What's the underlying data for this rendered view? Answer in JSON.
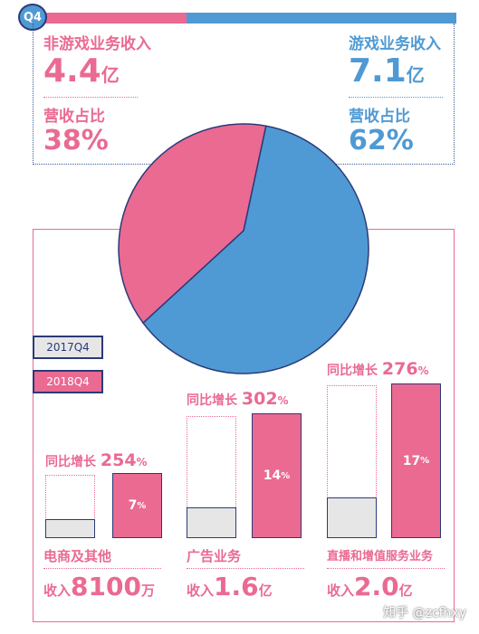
{
  "badge": "Q4",
  "top": {
    "non_game_label": "非游戏业务收入",
    "non_game_value": "4.4",
    "non_game_unit": "亿",
    "non_game_share_label": "营收占比",
    "non_game_share": "38%",
    "game_label": "游戏业务收入",
    "game_value": "7.1",
    "game_unit": "亿",
    "game_share_label": "营收占比",
    "game_share": "62%"
  },
  "legend": {
    "a": "2017Q4",
    "b": "2018Q4"
  },
  "colors": {
    "pink": "#ea6a92",
    "blue": "#4f9ad4",
    "navy": "#2b3a78",
    "gray": "#e6e6e6"
  },
  "growth_prefix": "同比增长",
  "segments": [
    {
      "name": "电商及其他",
      "revenue_prefix": "收入",
      "revenue_value": "8100",
      "revenue_unit": "万",
      "growth": "254",
      "growth_unit": "%",
      "share_label": "7",
      "share_unit": "%"
    },
    {
      "name": "广告业务",
      "revenue_prefix": "收入",
      "revenue_value": "1.6",
      "revenue_unit": "亿",
      "growth": "302",
      "growth_unit": "%",
      "share_label": "14",
      "share_unit": "%"
    },
    {
      "name": "直播和增值服务业务",
      "revenue_prefix": "收入",
      "revenue_value": "2.0",
      "revenue_unit": "亿",
      "growth": "276",
      "growth_unit": "%",
      "share_label": "17",
      "share_unit": "%"
    }
  ],
  "chart_data": [
    {
      "type": "pie",
      "title": "",
      "categories": [
        "非游戏业务收入",
        "游戏业务收入"
      ],
      "values": [
        38,
        62
      ],
      "colors": [
        "#ea6a92",
        "#4f9ad4"
      ]
    },
    {
      "type": "bar",
      "title": "",
      "categories": [
        "电商及其他",
        "广告业务",
        "直播和增值服务业务"
      ],
      "series": [
        {
          "name": "2017Q4",
          "values": [
            0.23,
            0.4,
            0.53
          ]
        },
        {
          "name": "2018Q4",
          "values": [
            0.81,
            1.6,
            2.0
          ]
        }
      ],
      "growth_percent": [
        254,
        302,
        276
      ],
      "unit": "亿"
    }
  ],
  "watermark": "知乎 @zcfhxy"
}
